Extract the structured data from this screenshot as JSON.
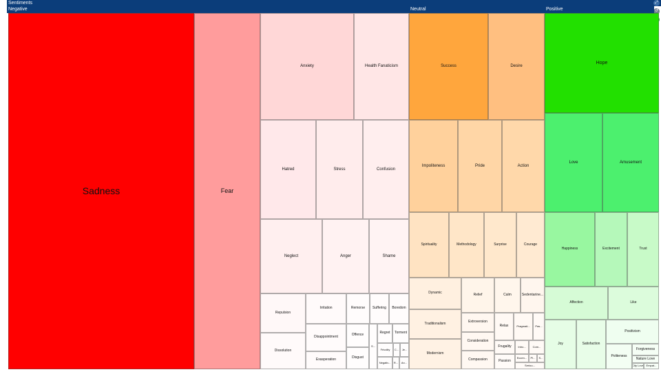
{
  "title": "Sentiments",
  "toolbar": {
    "expand_icon": "expand-icon",
    "reset_icon": "reset-icon",
    "download_icon": "download-icon"
  },
  "chart_data": {
    "type": "treemap",
    "groups": [
      {
        "name": "Negative",
        "color": "#ff0000",
        "items": [
          {
            "label": "Sadness",
            "value": 27,
            "color": "#ff0000"
          },
          {
            "label": "Fear",
            "value": 9.6,
            "color": "#ff9c9c"
          },
          {
            "label": "Anxiety",
            "value": 4.2,
            "color": "#ffd7d7"
          },
          {
            "label": "Health Fanaticism",
            "value": 2.3,
            "color": "#ffe6e6"
          },
          {
            "label": "Hatred",
            "value": 2.2,
            "color": "#ffe8ea"
          },
          {
            "label": "Stress",
            "value": 1.8,
            "color": "#ffecec"
          },
          {
            "label": "Confusion",
            "value": 1.7,
            "color": "#ffeeee"
          },
          {
            "label": "Neglect",
            "value": 2.4,
            "color": "#ffefef"
          },
          {
            "label": "Anger",
            "value": 1.8,
            "color": "#fff2f2"
          },
          {
            "label": "Shame",
            "value": 1.5,
            "color": "#fff3f3"
          },
          {
            "label": "Repulsion",
            "value": 0.8,
            "color": "#fff8f8"
          },
          {
            "label": "Dissolution",
            "value": 0.8,
            "color": "#fffafa"
          },
          {
            "label": "Irritation",
            "value": 0.65,
            "color": "#fffafa"
          },
          {
            "label": "Disappointment",
            "value": 0.6,
            "color": "#fffbfb"
          },
          {
            "label": "Exasperation",
            "value": 0.45,
            "color": "#fffbfb"
          },
          {
            "label": "Remorse",
            "value": 0.4,
            "color": "#fffcfc"
          },
          {
            "label": "Suffering",
            "value": 0.35,
            "color": "#fffcfc"
          },
          {
            "label": "Boredom",
            "value": 0.35,
            "color": "#fffcfc"
          },
          {
            "label": "Offence",
            "value": 0.3,
            "color": "#fffdfd"
          },
          {
            "label": "Disgust",
            "value": 0.3,
            "color": "#fffdfd"
          },
          {
            "label": "S...",
            "value": 0.1,
            "color": "#fffdfd"
          },
          {
            "label": "Regret",
            "value": 0.2,
            "color": "#fffdfd"
          },
          {
            "label": "Torment",
            "value": 0.2,
            "color": "#fffdfd"
          },
          {
            "label": "Frivolity",
            "value": 0.15,
            "color": "#fffdfd"
          },
          {
            "label": "C...",
            "value": 0.08,
            "color": "#fffdfd"
          },
          {
            "label": "Je...",
            "value": 0.08,
            "color": "#fffdfd"
          },
          {
            "label": "Negativ...",
            "value": 0.14,
            "color": "#fffdfd"
          },
          {
            "label": "R...",
            "value": 0.05,
            "color": "#fffdfd"
          },
          {
            "label": "An...",
            "value": 0.07,
            "color": "#fffdfd"
          }
        ]
      },
      {
        "name": "Neutral",
        "color": "#ffa63d",
        "items": [
          {
            "label": "Success",
            "value": 4.4,
            "color": "#ffa63d"
          },
          {
            "label": "Desire",
            "value": 3.1,
            "color": "#ffbf80"
          },
          {
            "label": "Impoliteness",
            "value": 2.3,
            "color": "#ffd19c"
          },
          {
            "label": "Pride",
            "value": 2.1,
            "color": "#ffd6a6"
          },
          {
            "label": "Action",
            "value": 2.1,
            "color": "#ffd8aa"
          },
          {
            "label": "Spirituality",
            "value": 1.6,
            "color": "#ffe3c2"
          },
          {
            "label": "Methodology",
            "value": 1.4,
            "color": "#ffe6c8"
          },
          {
            "label": "Surprise",
            "value": 1.3,
            "color": "#ffe8cc"
          },
          {
            "label": "Courage",
            "value": 1.1,
            "color": "#ffead2"
          },
          {
            "label": "Dynamic",
            "value": 0.9,
            "color": "#fff0e0"
          },
          {
            "label": "Traditionalism",
            "value": 0.9,
            "color": "#fff1e2"
          },
          {
            "label": "Modernism",
            "value": 0.9,
            "color": "#fff2e4"
          },
          {
            "label": "Relief",
            "value": 0.5,
            "color": "#fff5ea"
          },
          {
            "label": "Calm",
            "value": 0.4,
            "color": "#fff6ec"
          },
          {
            "label": "Sedentarine...",
            "value": 0.35,
            "color": "#fff6ee"
          },
          {
            "label": "Extroversion",
            "value": 0.35,
            "color": "#fff7f0"
          },
          {
            "label": "Consideration",
            "value": 0.3,
            "color": "#fff8f2"
          },
          {
            "label": "Compassion",
            "value": 0.3,
            "color": "#fff8f2"
          },
          {
            "label": "Relax",
            "value": 0.2,
            "color": "#fff9f4"
          },
          {
            "label": "Pragmati...",
            "value": 0.15,
            "color": "#fff9f4"
          },
          {
            "label": "Pas...",
            "value": 0.1,
            "color": "#fffaf6"
          },
          {
            "label": "Frugality",
            "value": 0.15,
            "color": "#fffaf6"
          },
          {
            "label": "Intro...",
            "value": 0.1,
            "color": "#fffaf6"
          },
          {
            "label": "Com...",
            "value": 0.08,
            "color": "#fffaf6"
          },
          {
            "label": "Passion",
            "value": 0.12,
            "color": "#fffbf8"
          },
          {
            "label": "Eccen...",
            "value": 0.06,
            "color": "#fffbf8"
          },
          {
            "label": "Pl...",
            "value": 0.04,
            "color": "#fffbf8"
          },
          {
            "label": "S...",
            "value": 0.03,
            "color": "#fffbf8"
          },
          {
            "label": "Seriou...",
            "value": 0.05,
            "color": "#fffbf8"
          }
        ]
      },
      {
        "name": "Positive",
        "color": "#22e000",
        "items": [
          {
            "label": "Hope",
            "value": 5.5,
            "color": "#22e000"
          },
          {
            "label": "Love",
            "value": 3.7,
            "color": "#4cf06e"
          },
          {
            "label": "Amusement",
            "value": 3.6,
            "color": "#4cf06e"
          },
          {
            "label": "Happiness",
            "value": 2.4,
            "color": "#98f7a0"
          },
          {
            "label": "Excitement",
            "value": 1.5,
            "color": "#b5f8ba"
          },
          {
            "label": "Trust",
            "value": 1.5,
            "color": "#c8fac8"
          },
          {
            "label": "Affection",
            "value": 1.3,
            "color": "#d6fbd6"
          },
          {
            "label": "Like",
            "value": 1.1,
            "color": "#dcfcdc"
          },
          {
            "label": "Joy",
            "value": 0.9,
            "color": "#e6fde6"
          },
          {
            "label": "Satisfaction",
            "value": 0.9,
            "color": "#e8fde8"
          },
          {
            "label": "Positivism",
            "value": 0.5,
            "color": "#effef0"
          },
          {
            "label": "Politeness",
            "value": 0.3,
            "color": "#f3fef3"
          },
          {
            "label": "Forgiveness",
            "value": 0.2,
            "color": "#f5fef5"
          },
          {
            "label": "Nature Love",
            "value": 0.18,
            "color": "#f6fef6"
          },
          {
            "label": "City Love",
            "value": 0.07,
            "color": "#f8fff8"
          },
          {
            "label": "Empat...",
            "value": 0.08,
            "color": "#f8fff8"
          }
        ]
      }
    ]
  }
}
